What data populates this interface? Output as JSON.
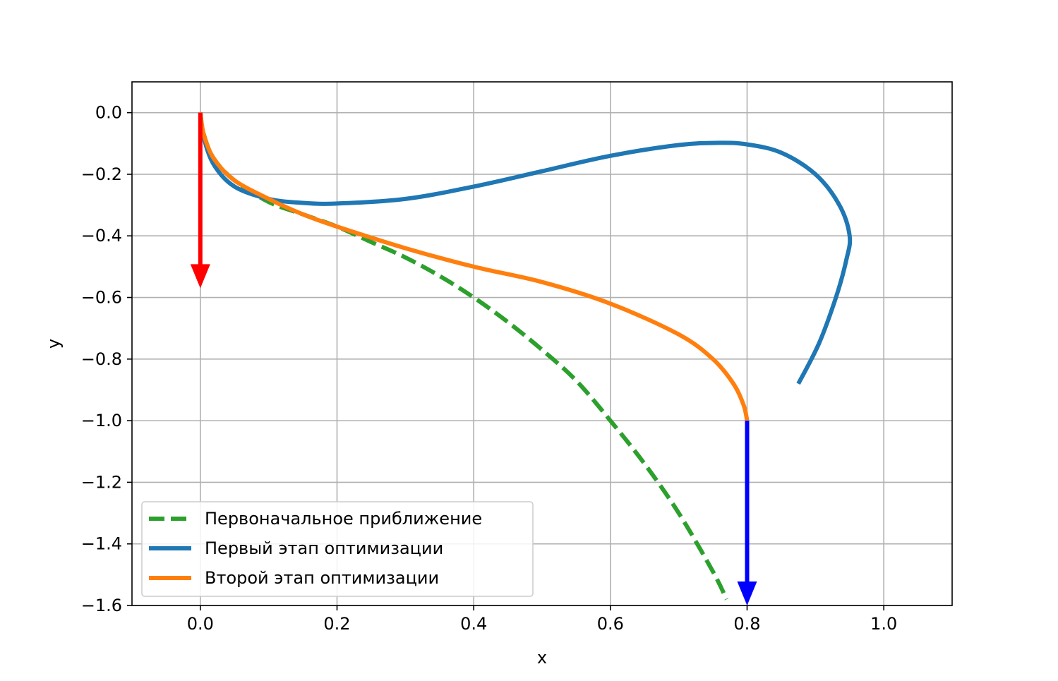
{
  "chart_data": {
    "type": "line",
    "title": "",
    "xlabel": "x",
    "ylabel": "y",
    "xlim": [
      -0.1,
      1.1
    ],
    "ylim": [
      -1.6,
      0.1
    ],
    "xticks": [
      0.0,
      0.2,
      0.4,
      0.6,
      0.8,
      1.0
    ],
    "yticks": [
      0.0,
      -0.2,
      -0.4,
      -0.6,
      -0.8,
      -1.0,
      -1.2,
      -1.4,
      -1.6
    ],
    "xtick_labels": [
      "0.0",
      "0.2",
      "0.4",
      "0.6",
      "0.8",
      "1.0"
    ],
    "ytick_labels": [
      "0.0",
      "−0.2",
      "−0.4",
      "−0.6",
      "−0.8",
      "−1.0",
      "−1.2",
      "−1.4",
      "−1.6"
    ],
    "grid": true,
    "legend_position": "lower-left",
    "series": [
      {
        "name": "Первоначальное приближение",
        "color": "#2ca02c",
        "style": "dashed",
        "x": [
          0.0,
          0.005,
          0.02,
          0.05,
          0.1,
          0.15,
          0.2,
          0.25,
          0.3,
          0.35,
          0.4,
          0.45,
          0.5,
          0.55,
          0.6,
          0.65,
          0.7,
          0.75,
          0.77
        ],
        "y": [
          0.0,
          -0.07,
          -0.15,
          -0.22,
          -0.29,
          -0.33,
          -0.37,
          -0.42,
          -0.47,
          -0.53,
          -0.6,
          -0.68,
          -0.77,
          -0.87,
          -1.0,
          -1.14,
          -1.3,
          -1.49,
          -1.58
        ]
      },
      {
        "name": "Первый этап оптимизации",
        "color": "#1f77b4",
        "style": "solid",
        "x": [
          0.0,
          0.005,
          0.02,
          0.05,
          0.1,
          0.15,
          0.2,
          0.3,
          0.4,
          0.5,
          0.6,
          0.7,
          0.76,
          0.8,
          0.85,
          0.9,
          0.935,
          0.95,
          0.945,
          0.93,
          0.905,
          0.875
        ],
        "y": [
          0.0,
          -0.08,
          -0.17,
          -0.24,
          -0.28,
          -0.293,
          -0.295,
          -0.28,
          -0.24,
          -0.19,
          -0.14,
          -0.105,
          -0.098,
          -0.103,
          -0.13,
          -0.2,
          -0.3,
          -0.4,
          -0.48,
          -0.6,
          -0.75,
          -0.88
        ]
      },
      {
        "name": "Второй этап оптимизации",
        "color": "#ff7f0e",
        "style": "solid",
        "x": [
          0.0,
          0.005,
          0.02,
          0.05,
          0.1,
          0.15,
          0.2,
          0.3,
          0.4,
          0.5,
          0.6,
          0.7,
          0.75,
          0.78,
          0.795,
          0.8
        ],
        "y": [
          0.0,
          -0.07,
          -0.15,
          -0.22,
          -0.28,
          -0.33,
          -0.37,
          -0.44,
          -0.5,
          -0.55,
          -0.62,
          -0.72,
          -0.8,
          -0.88,
          -0.95,
          -1.0
        ]
      }
    ],
    "arrows": [
      {
        "color": "#ff0000",
        "x": 0.0,
        "y_start": 0.0,
        "y_end": -0.57
      },
      {
        "color": "#0000ff",
        "x": 0.8,
        "y_start": -1.0,
        "y_end": -1.6
      }
    ]
  }
}
